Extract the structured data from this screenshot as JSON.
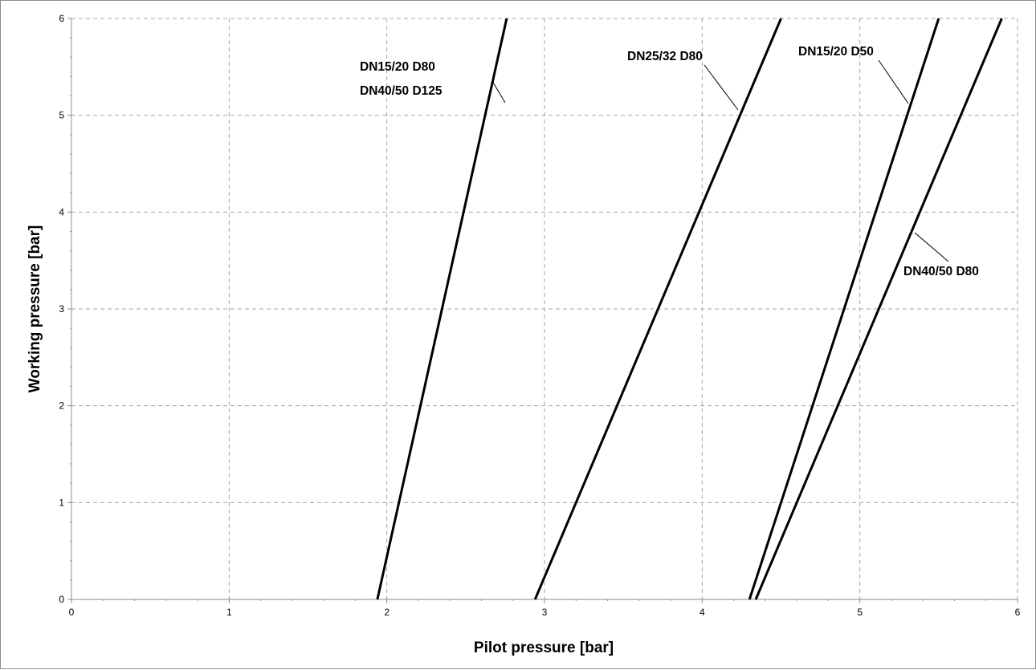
{
  "chart_data": {
    "type": "line",
    "xlabel": "Pilot pressure [bar]",
    "ylabel": "Working pressure [bar]",
    "xlim": [
      0,
      6
    ],
    "ylim": [
      0,
      6
    ],
    "xticks": [
      "0",
      "1",
      "2",
      "3",
      "4",
      "5",
      "6"
    ],
    "yticks": [
      "0",
      "1",
      "2",
      "3",
      "4",
      "5",
      "6"
    ],
    "grid": true,
    "line_color": "#000000",
    "grid_color": "#a6a6a6",
    "series": [
      {
        "label": [
          "DN15/20 D80",
          "DN40/50 D125"
        ],
        "x": [
          1.94,
          2.76
        ],
        "y": [
          0,
          6
        ]
      },
      {
        "label": [
          "DN25/32 D80"
        ],
        "x": [
          2.94,
          4.5
        ],
        "y": [
          0,
          6
        ]
      },
      {
        "label": [
          "DN15/20 D50"
        ],
        "x": [
          4.3,
          5.5
        ],
        "y": [
          0,
          6
        ]
      },
      {
        "label": [
          "DN40/50 D80"
        ],
        "x": [
          4.34,
          5.9
        ],
        "y": [
          0,
          6
        ]
      }
    ]
  }
}
